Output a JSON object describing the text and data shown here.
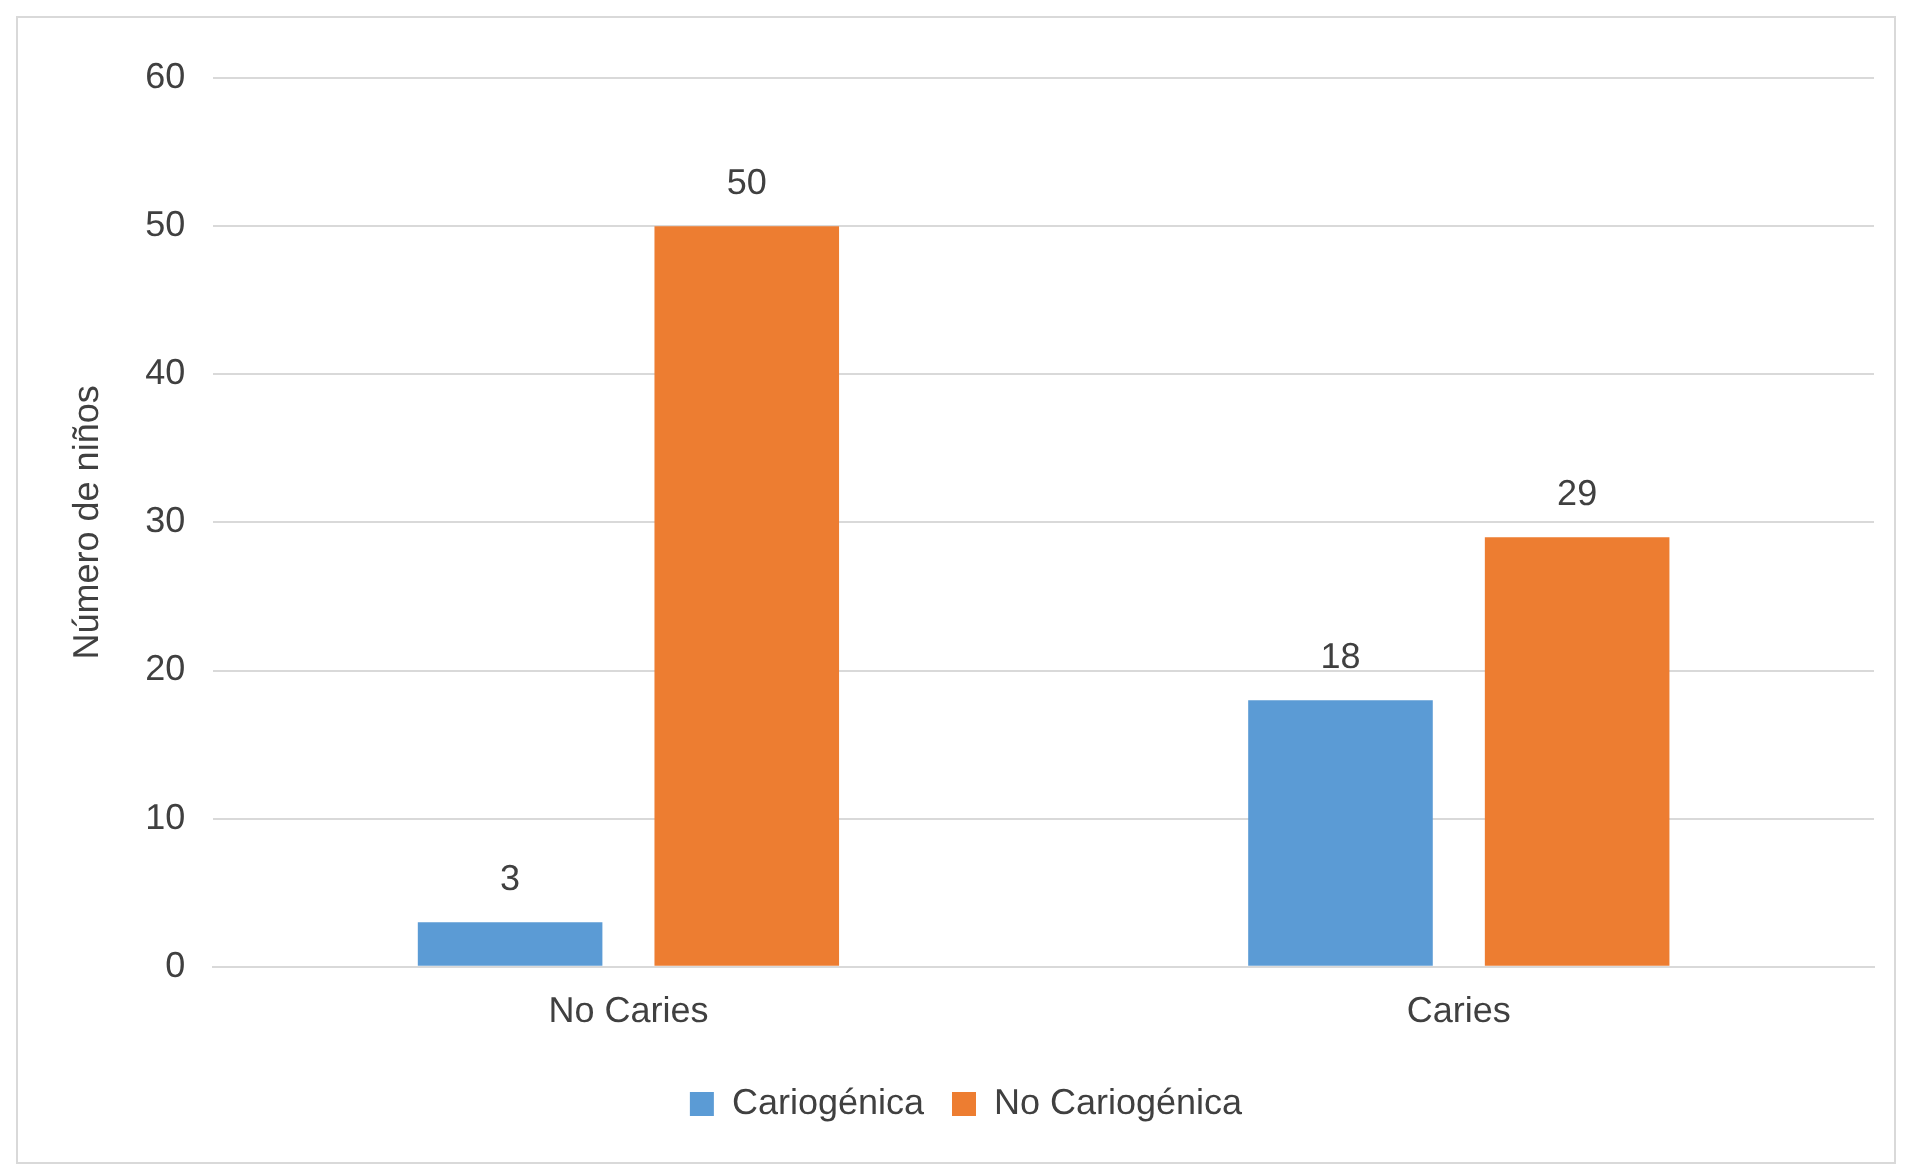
{
  "chart_data": {
    "type": "bar",
    "ylabel": "Número de niños",
    "categories": [
      "No Caries",
      "Caries"
    ],
    "series": [
      {
        "name": "Cariogénica",
        "color": "#5b9bd5",
        "values": [
          3,
          18
        ]
      },
      {
        "name": "No Cariogénica",
        "color": "#ed7d31",
        "values": [
          50,
          29
        ]
      }
    ],
    "ylim": [
      0,
      60
    ],
    "yticks": [
      0,
      10,
      20,
      30,
      40,
      50,
      60
    ],
    "grid": "y",
    "legend": "bottom",
    "data_labels": true
  }
}
